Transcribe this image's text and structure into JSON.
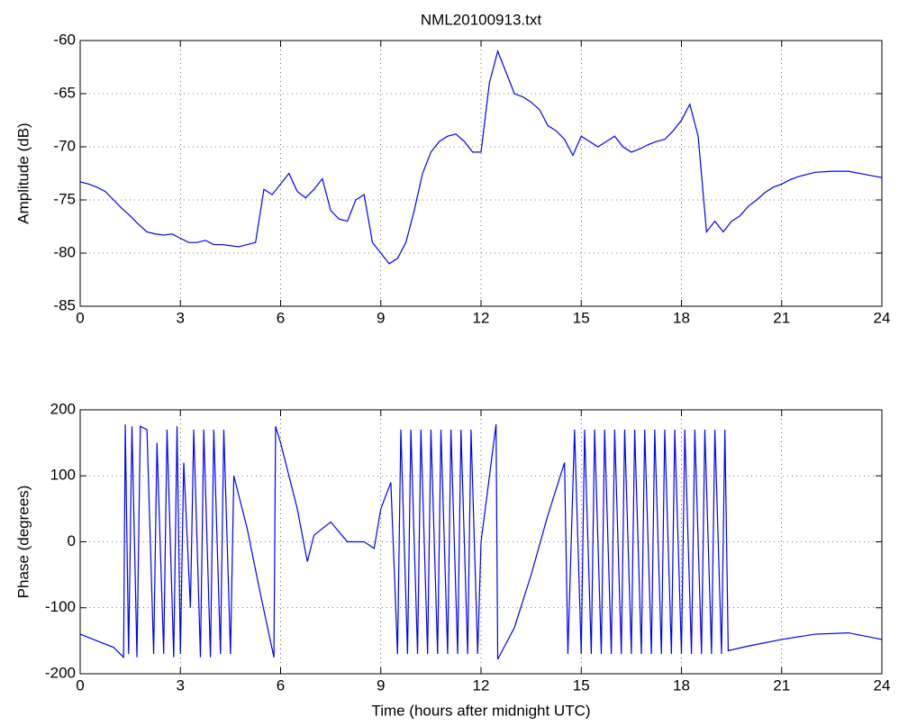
{
  "chart_data": [
    {
      "type": "line",
      "title": "NML20100913.txt",
      "ylabel": "Amplitude (dB)",
      "color": "#0000ff",
      "grid": true,
      "x": [
        0,
        0.25,
        0.5,
        0.75,
        1,
        1.25,
        1.5,
        1.75,
        2,
        2.25,
        2.5,
        2.75,
        3,
        3.25,
        3.5,
        3.75,
        4,
        4.25,
        4.5,
        4.75,
        5,
        5.25,
        5.5,
        5.75,
        6,
        6.25,
        6.5,
        6.75,
        7,
        7.25,
        7.5,
        7.75,
        8,
        8.25,
        8.5,
        8.75,
        9,
        9.25,
        9.5,
        9.75,
        10,
        10.25,
        10.5,
        10.75,
        11,
        11.25,
        11.5,
        11.75,
        12,
        12.25,
        12.5,
        12.75,
        13,
        13.25,
        13.5,
        13.75,
        14,
        14.25,
        14.5,
        14.75,
        15,
        15.25,
        15.5,
        15.75,
        16,
        16.25,
        16.5,
        16.75,
        17,
        17.25,
        17.5,
        17.75,
        18,
        18.25,
        18.5,
        18.75,
        19,
        19.25,
        19.5,
        19.75,
        20,
        20.25,
        20.5,
        20.75,
        21,
        21.25,
        21.5,
        21.75,
        22,
        22.5,
        23,
        23.5,
        24
      ],
      "values": [
        -73.3,
        -73.5,
        -73.8,
        -74.2,
        -75,
        -75.8,
        -76.5,
        -77.3,
        -78,
        -78.2,
        -78.3,
        -78.2,
        -78.6,
        -79,
        -79,
        -78.8,
        -79.2,
        -79.2,
        -79.3,
        -79.4,
        -79.2,
        -79,
        -74,
        -74.5,
        -73.5,
        -72.5,
        -74.2,
        -74.8,
        -74,
        -73,
        -76,
        -76.8,
        -77,
        -75,
        -74.5,
        -79,
        -80,
        -81,
        -80.5,
        -79,
        -76,
        -72.5,
        -70.5,
        -69.5,
        -69,
        -68.8,
        -69.5,
        -70.5,
        -70.5,
        -64,
        -61,
        -63,
        -65,
        -65.3,
        -65.8,
        -66.5,
        -68,
        -68.5,
        -69.3,
        -70.8,
        -69,
        -69.5,
        -70,
        -69.5,
        -69,
        -70,
        -70.5,
        -70.2,
        -69.8,
        -69.5,
        -69.3,
        -68.5,
        -67.5,
        -66,
        -69,
        -78,
        -77,
        -78,
        -77,
        -76.5,
        -75.6,
        -75,
        -74.3,
        -73.8,
        -73.5,
        -73.1,
        -72.8,
        -72.6,
        -72.4,
        -72.3,
        -72.3,
        -72.6,
        -72.9
      ],
      "xlim": [
        0,
        24
      ],
      "xticks": [
        0,
        3,
        6,
        9,
        12,
        15,
        18,
        21,
        24
      ],
      "ylim": [
        -85,
        -60
      ],
      "yticks": [
        -85,
        -80,
        -75,
        -70,
        -65,
        -60
      ]
    },
    {
      "type": "line",
      "xlabel": "Time (hours after midnight UTC)",
      "ylabel": "Phase (degrees)",
      "color": "#0000ff",
      "grid": true,
      "x": [
        0,
        0.5,
        1,
        1.3,
        1.35,
        1.45,
        1.55,
        1.7,
        1.8,
        2,
        2.2,
        2.3,
        2.5,
        2.6,
        2.8,
        2.9,
        3.0,
        3.1,
        3.3,
        3.4,
        3.6,
        3.7,
        3.9,
        4.0,
        4.2,
        4.3,
        4.5,
        4.6,
        5,
        5.4,
        5.8,
        5.85,
        6,
        6.5,
        6.8,
        7,
        7.5,
        8,
        8.5,
        8.8,
        9,
        9.3,
        9.5,
        9.6,
        9.8,
        9.9,
        10.1,
        10.2,
        10.4,
        10.5,
        10.7,
        10.8,
        11,
        11.1,
        11.3,
        11.4,
        11.6,
        11.7,
        11.9,
        12,
        12.45,
        12.5,
        13,
        13.5,
        14,
        14.5,
        14.6,
        14.8,
        15,
        15.1,
        15.3,
        15.4,
        15.6,
        15.7,
        15.9,
        16,
        16.2,
        16.3,
        16.5,
        16.6,
        16.8,
        16.9,
        17.1,
        17.2,
        17.4,
        17.5,
        17.7,
        17.8,
        18,
        18.1,
        18.3,
        18.4,
        18.6,
        18.7,
        18.9,
        19,
        19.2,
        19.3,
        19.4,
        20,
        21,
        22,
        23,
        24
      ],
      "values": [
        -140,
        -150,
        -160,
        -175,
        178,
        -170,
        175,
        -175,
        175,
        170,
        -170,
        150,
        -170,
        170,
        -175,
        175,
        -170,
        120,
        -100,
        170,
        -175,
        170,
        -175,
        170,
        -170,
        170,
        -170,
        100,
        20,
        -80,
        -175,
        175,
        150,
        50,
        -30,
        10,
        30,
        0,
        0,
        -10,
        50,
        90,
        -170,
        170,
        -170,
        170,
        -170,
        170,
        -170,
        170,
        -170,
        170,
        -170,
        170,
        -170,
        170,
        -170,
        170,
        -170,
        0,
        178,
        -178,
        -130,
        -50,
        40,
        120,
        -170,
        170,
        -170,
        170,
        -170,
        170,
        -170,
        170,
        -170,
        170,
        -170,
        170,
        -170,
        170,
        -170,
        170,
        -170,
        170,
        -170,
        170,
        -170,
        170,
        -170,
        170,
        -170,
        170,
        -170,
        170,
        -170,
        170,
        -170,
        170,
        -165,
        -158,
        -148,
        -140,
        -138,
        -148
      ],
      "xlim": [
        0,
        24
      ],
      "xticks": [
        0,
        3,
        6,
        9,
        12,
        15,
        18,
        21,
        24
      ],
      "ylim": [
        -200,
        200
      ],
      "yticks": [
        -200,
        -100,
        0,
        100,
        200
      ]
    }
  ]
}
